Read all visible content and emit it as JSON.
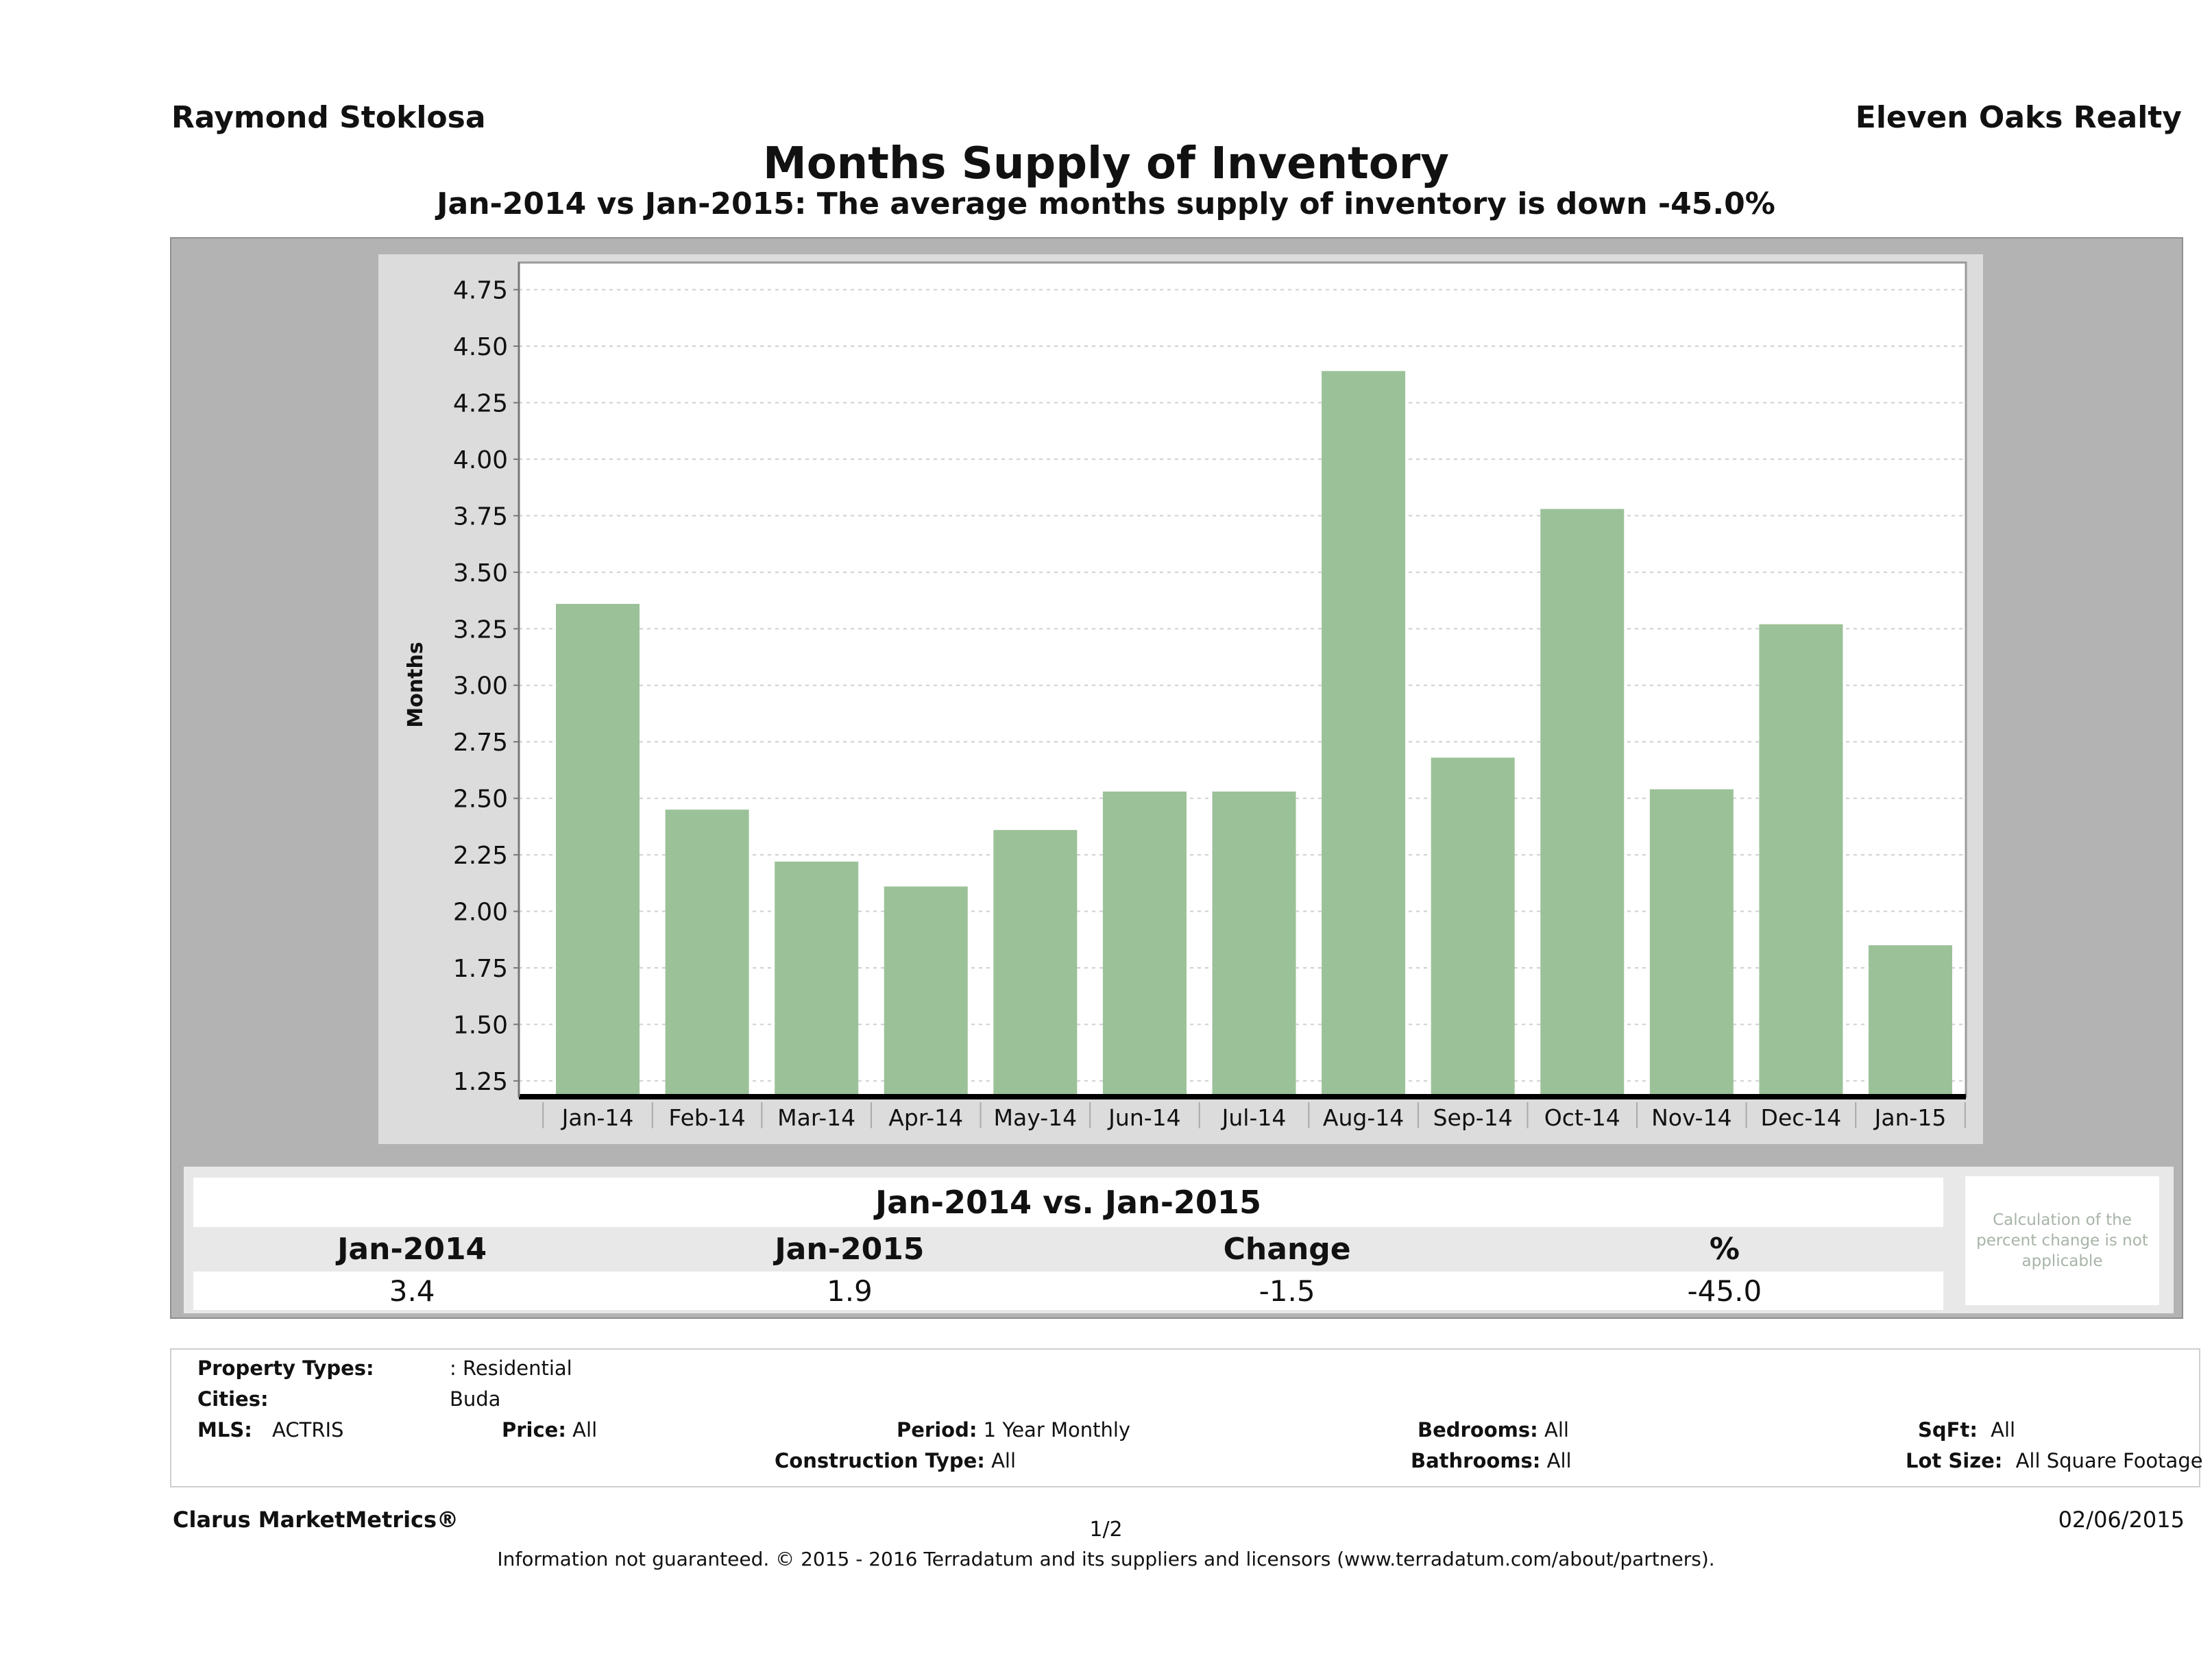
{
  "header": {
    "agent_name": "Raymond Stoklosa",
    "company_name": "Eleven Oaks Realty",
    "title": "Months Supply of Inventory",
    "subtitle": "Jan-2014 vs Jan-2015: The average months supply of inventory is down -45.0%"
  },
  "chart_data": {
    "type": "bar",
    "title": "Months Supply of Inventory",
    "xlabel": "",
    "ylabel": "Months",
    "categories": [
      "Jan-14",
      "Feb-14",
      "Mar-14",
      "Apr-14",
      "May-14",
      "Jun-14",
      "Jul-14",
      "Aug-14",
      "Sep-14",
      "Oct-14",
      "Nov-14",
      "Dec-14",
      "Jan-15"
    ],
    "values": [
      3.36,
      2.45,
      2.22,
      2.11,
      2.36,
      2.53,
      2.53,
      4.39,
      2.68,
      3.78,
      2.54,
      3.27,
      1.85
    ],
    "ylim": [
      1.18,
      4.87
    ],
    "yticks": [
      "1.25",
      "1.50",
      "1.75",
      "2.00",
      "2.25",
      "2.50",
      "2.75",
      "3.00",
      "3.25",
      "3.50",
      "3.75",
      "4.00",
      "4.25",
      "4.50",
      "4.75"
    ],
    "grid": true,
    "legend": "none",
    "bar_color": "#9bc198"
  },
  "summary": {
    "heading": "Jan-2014 vs. Jan-2015",
    "columns": [
      "Jan-2014",
      "Jan-2015",
      "Change",
      "%"
    ],
    "values": [
      "3.4",
      "1.9",
      "-1.5",
      "-45.0"
    ],
    "note": "Calculation of the percent change is not applicable"
  },
  "filters": {
    "property_types": {
      "label": "Property Types:",
      "value": ": Residential"
    },
    "cities": {
      "label": "Cities:",
      "value": "Buda"
    },
    "mls": {
      "label": "MLS:",
      "value": "ACTRIS"
    },
    "price": {
      "label": "Price:",
      "value": "All"
    },
    "period": {
      "label": "Period:",
      "value": "1 Year Monthly"
    },
    "construction_type": {
      "label": "Construction Type:",
      "value": "All"
    },
    "bedrooms": {
      "label": "Bedrooms:",
      "value": "All"
    },
    "bathrooms": {
      "label": "Bathrooms:",
      "value": "All"
    },
    "sqft": {
      "label": "SqFt:",
      "value": "All"
    },
    "lot_size": {
      "label": "Lot Size:",
      "value": "All Square Footage"
    }
  },
  "footer": {
    "brand": "Clarus MarketMetrics®",
    "page": "1/2",
    "date": "02/06/2015",
    "disclaimer": "Information not guaranteed. © 2015 - 2016 Terradatum and its suppliers and licensors (www.terradatum.com/about/partners)."
  }
}
